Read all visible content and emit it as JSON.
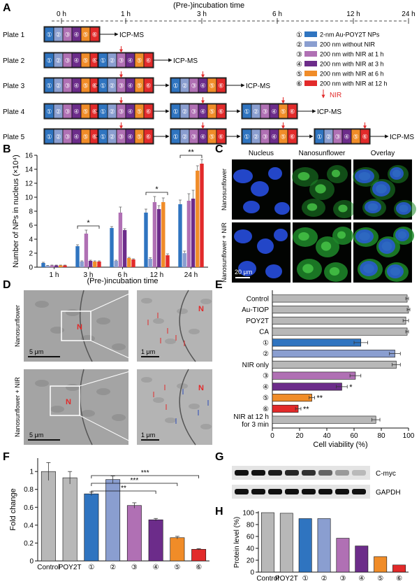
{
  "panels": {
    "A": "A",
    "B": "B",
    "C": "C",
    "D": "D",
    "E": "E",
    "F": "F",
    "G": "G",
    "H": "H"
  },
  "circled": [
    "①",
    "②",
    "③",
    "④",
    "⑤",
    "⑥"
  ],
  "colors": [
    "#2f74c0",
    "#8a9ed0",
    "#b070b4",
    "#6c2c8a",
    "#f08c28",
    "#e22a2a",
    "#b8b8b8"
  ],
  "panel_a": {
    "axis_title": "(Pre-)incubation time",
    "time_ticks": [
      "0 h",
      "1 h",
      "3 h",
      "6 h",
      "12 h",
      "24 h"
    ],
    "plates": [
      "Plate 1",
      "Plate 2",
      "Plate 3",
      "Plate 4",
      "Plate 5"
    ],
    "endpoint": "ICP-MS",
    "legend": [
      "2-nm Au-POY2T NPs",
      "200 nm without NIR",
      "200 nm with NIR at 1 h",
      "200 nm with NIR at 3 h",
      "200 nm with NIR at 6 h",
      "200 nm with NIR at 12 h"
    ],
    "nir_label": "NIR"
  },
  "panel_c": {
    "col_labels": [
      "Nucleus",
      "Nanosunflower",
      "Overlay"
    ],
    "row_labels": [
      "Nanosunflower",
      "Nanosunflower + NIR"
    ],
    "scale": "20 μm"
  },
  "panel_d": {
    "row_labels": [
      "Nanosunflower",
      "Nanosunflower + NIR"
    ],
    "scale_left": "5 μm",
    "scale_right": "1 μm",
    "nucleus_mark": "N"
  },
  "panel_g": {
    "bands": [
      "C-myc",
      "GAPDH"
    ]
  },
  "chart_data": [
    {
      "panel": "B",
      "type": "bar",
      "xlabel": "(Pre-)incubation time",
      "ylabel": "Number of NPs in nucleus (×10⁴)",
      "categories": [
        "1 h",
        "3 h",
        "6 h",
        "12 h",
        "24 h"
      ],
      "ylim": [
        0,
        16
      ],
      "yticks": [
        0,
        2,
        4,
        6,
        8,
        10,
        12,
        14,
        16
      ],
      "series": [
        {
          "name": "①",
          "values": [
            0.6,
            3.0,
            5.6,
            7.8,
            9.0
          ],
          "errors": [
            0.1,
            0.2,
            0.2,
            0.5,
            0.6
          ]
        },
        {
          "name": "②",
          "values": [
            0.2,
            0.8,
            0.9,
            1.2,
            2.0
          ],
          "errors": [
            0.05,
            0.1,
            0.1,
            0.15,
            0.3
          ]
        },
        {
          "name": "③",
          "values": [
            0.25,
            4.8,
            7.8,
            9.3,
            9.5
          ],
          "errors": [
            0.05,
            0.5,
            0.8,
            0.8,
            1.0
          ]
        },
        {
          "name": "④",
          "values": [
            0.25,
            0.9,
            5.3,
            8.3,
            9.8
          ],
          "errors": [
            0.05,
            0.1,
            0.2,
            0.5,
            1.2
          ]
        },
        {
          "name": "⑤",
          "values": [
            0.25,
            0.8,
            1.3,
            9.3,
            13.8
          ],
          "errors": [
            0.05,
            0.1,
            0.1,
            0.6,
            0.7
          ]
        },
        {
          "name": "⑥",
          "values": [
            0.25,
            0.8,
            1.1,
            1.7,
            14.8
          ],
          "errors": [
            0.05,
            0.1,
            0.1,
            0.2,
            0.6
          ]
        }
      ],
      "significance": [
        {
          "category": "3 h",
          "label": "*"
        },
        {
          "category": "12 h",
          "label": "*"
        },
        {
          "category": "24 h",
          "label": "**"
        }
      ]
    },
    {
      "panel": "E",
      "type": "bar",
      "orientation": "horizontal",
      "xlabel": "Cell viability (%)",
      "xlim": [
        0,
        100
      ],
      "xticks": [
        0,
        20,
        40,
        60,
        80,
        100
      ],
      "categories": [
        "Control",
        "Au-TIOP",
        "POY2T",
        "CA",
        "①",
        "②",
        "NIR only",
        "③",
        "④",
        "⑤",
        "⑥",
        "NIR at 12 h\nfor 3 min"
      ],
      "values": [
        99,
        100,
        98,
        99,
        65,
        90,
        91,
        61,
        51,
        29,
        19,
        76
      ],
      "errors": [
        1,
        1,
        2,
        1,
        5,
        4,
        3,
        4,
        4,
        2,
        2,
        3
      ],
      "color_index": [
        6,
        6,
        6,
        6,
        0,
        1,
        6,
        2,
        3,
        4,
        5,
        6
      ],
      "marks": [
        "",
        "",
        "",
        "",
        "",
        "",
        "",
        "",
        "*",
        "**",
        "**",
        ""
      ]
    },
    {
      "panel": "F",
      "type": "bar",
      "ylabel": "Fold change",
      "categories": [
        "Control",
        "POY2T",
        "①",
        "②",
        "③",
        "④",
        "⑤",
        "⑥"
      ],
      "values": [
        1.0,
        0.93,
        0.75,
        0.91,
        0.62,
        0.46,
        0.26,
        0.13
      ],
      "errors": [
        0.1,
        0.07,
        0.02,
        0.04,
        0.03,
        0.015,
        0.015,
        0.007
      ],
      "color_index": [
        6,
        6,
        0,
        1,
        2,
        3,
        4,
        5
      ],
      "ylim": [
        0,
        1.15
      ],
      "yticks": [
        0.0,
        0.2,
        0.4,
        0.6,
        0.8,
        1.0
      ],
      "significance": [
        {
          "from": "①",
          "to": "④",
          "label": "**"
        },
        {
          "from": "①",
          "to": "⑤",
          "label": "***"
        },
        {
          "from": "①",
          "to": "⑥",
          "label": "***"
        }
      ]
    },
    {
      "panel": "H",
      "type": "bar",
      "ylabel": "Protein level (%)",
      "categories": [
        "Control",
        "POY2T",
        "①",
        "②",
        "③",
        "④",
        "⑤",
        "⑥"
      ],
      "values": [
        100,
        99,
        90,
        90,
        57,
        44,
        26,
        12
      ],
      "color_index": [
        6,
        6,
        0,
        1,
        2,
        3,
        4,
        5
      ],
      "ylim": [
        0,
        100
      ],
      "yticks": [
        0,
        20,
        40,
        60,
        80,
        100
      ]
    }
  ]
}
